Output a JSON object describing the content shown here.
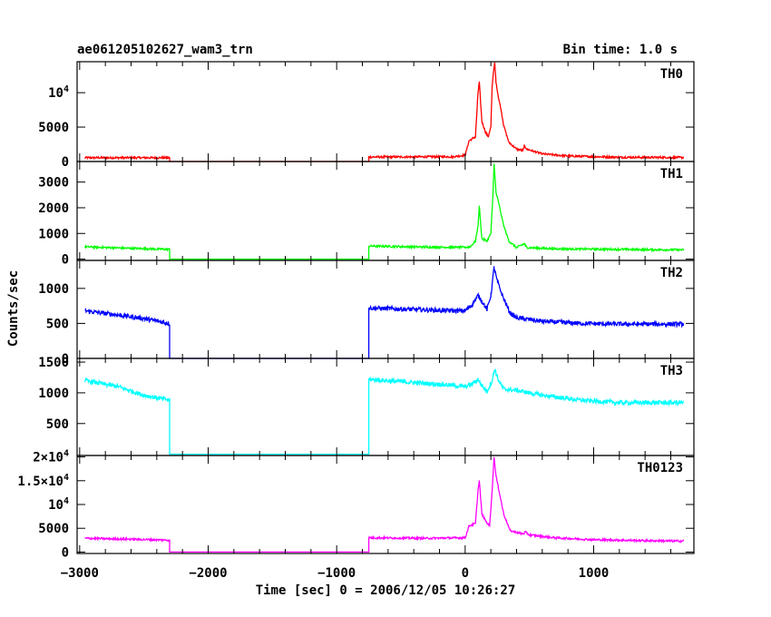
{
  "header": {
    "title": "ae061205102627_wam3_trn",
    "bin_time": "Bin time: 1.0 s"
  },
  "axes": {
    "ylabel": "Counts/sec",
    "xlabel": "Time [sec] 0 = 2006/12/05 10:26:27"
  },
  "chart_data": [
    {
      "type": "line",
      "name": "TH0",
      "color": "#ff0000",
      "ylim": [
        0,
        14500
      ],
      "xlim": [
        -3020,
        1780
      ],
      "ytick_labels": [
        {
          "v": 0,
          "t": "0"
        },
        {
          "v": 5000,
          "t": "5000"
        },
        {
          "v": 10000,
          "t": "10^4"
        }
      ],
      "points": [
        [
          -2960,
          550
        ],
        [
          -2300,
          550
        ],
        [
          -2300,
          0
        ],
        [
          -750,
          0
        ],
        [
          -750,
          650
        ],
        [
          -100,
          700
        ],
        [
          0,
          900
        ],
        [
          30,
          3000
        ],
        [
          80,
          3600
        ],
        [
          100,
          10000
        ],
        [
          110,
          11500
        ],
        [
          130,
          5800
        ],
        [
          160,
          4200
        ],
        [
          180,
          3600
        ],
        [
          200,
          5000
        ],
        [
          210,
          11000
        ],
        [
          220,
          13000
        ],
        [
          230,
          14300
        ],
        [
          240,
          11500
        ],
        [
          260,
          9200
        ],
        [
          280,
          7500
        ],
        [
          300,
          5200
        ],
        [
          340,
          2800
        ],
        [
          400,
          1800
        ],
        [
          450,
          1600
        ],
        [
          460,
          2300
        ],
        [
          480,
          1800
        ],
        [
          600,
          1100
        ],
        [
          800,
          800
        ],
        [
          1200,
          620
        ],
        [
          1700,
          580
        ]
      ]
    },
    {
      "type": "line",
      "name": "TH1",
      "color": "#00ff00",
      "ylim": [
        -50,
        3800
      ],
      "xlim": [
        -3020,
        1780
      ],
      "ytick_labels": [
        {
          "v": 0,
          "t": "0"
        },
        {
          "v": 1000,
          "t": "1000"
        },
        {
          "v": 2000,
          "t": "2000"
        },
        {
          "v": 3000,
          "t": "3000"
        }
      ],
      "points": [
        [
          -2960,
          480
        ],
        [
          -2600,
          420
        ],
        [
          -2300,
          380
        ],
        [
          -2300,
          0
        ],
        [
          -750,
          0
        ],
        [
          -750,
          510
        ],
        [
          -300,
          470
        ],
        [
          0,
          460
        ],
        [
          40,
          480
        ],
        [
          80,
          700
        ],
        [
          100,
          1300
        ],
        [
          110,
          2050
        ],
        [
          130,
          800
        ],
        [
          170,
          700
        ],
        [
          200,
          1000
        ],
        [
          215,
          2400
        ],
        [
          225,
          3700
        ],
        [
          240,
          2600
        ],
        [
          260,
          2200
        ],
        [
          300,
          1300
        ],
        [
          340,
          700
        ],
        [
          400,
          450
        ],
        [
          460,
          600
        ],
        [
          480,
          450
        ],
        [
          700,
          400
        ],
        [
          1000,
          390
        ],
        [
          1400,
          370
        ],
        [
          1700,
          360
        ]
      ]
    },
    {
      "type": "line",
      "name": "TH2",
      "color": "#0000ff",
      "ylim": [
        0,
        1400
      ],
      "xlim": [
        -3020,
        1780
      ],
      "ytick_labels": [
        {
          "v": 0,
          "t": "0"
        },
        {
          "v": 500,
          "t": "500"
        },
        {
          "v": 1000,
          "t": "1000"
        }
      ],
      "points": [
        [
          -2960,
          680
        ],
        [
          -2700,
          620
        ],
        [
          -2500,
          570
        ],
        [
          -2300,
          500
        ],
        [
          -2300,
          0
        ],
        [
          -750,
          0
        ],
        [
          -750,
          720
        ],
        [
          -400,
          700
        ],
        [
          -100,
          680
        ],
        [
          0,
          680
        ],
        [
          50,
          760
        ],
        [
          100,
          900
        ],
        [
          130,
          820
        ],
        [
          170,
          700
        ],
        [
          200,
          900
        ],
        [
          225,
          1300
        ],
        [
          250,
          1100
        ],
        [
          300,
          850
        ],
        [
          350,
          650
        ],
        [
          400,
          580
        ],
        [
          600,
          530
        ],
        [
          900,
          500
        ],
        [
          1200,
          490
        ],
        [
          1700,
          490
        ]
      ]
    },
    {
      "type": "line",
      "name": "TH3",
      "color": "#00ffff",
      "ylim": [
        -20,
        1560
      ],
      "xlim": [
        -3020,
        1780
      ],
      "ytick_labels": [
        {
          "v": 500,
          "t": "500"
        },
        {
          "v": 1000,
          "t": "1000"
        },
        {
          "v": 1500,
          "t": "1500"
        }
      ],
      "points": [
        [
          -2960,
          1200
        ],
        [
          -2700,
          1100
        ],
        [
          -2500,
          960
        ],
        [
          -2300,
          880
        ],
        [
          -2300,
          0
        ],
        [
          -750,
          0
        ],
        [
          -750,
          1220
        ],
        [
          -500,
          1180
        ],
        [
          -200,
          1140
        ],
        [
          0,
          1100
        ],
        [
          50,
          1140
        ],
        [
          100,
          1220
        ],
        [
          130,
          1120
        ],
        [
          170,
          1020
        ],
        [
          210,
          1200
        ],
        [
          230,
          1380
        ],
        [
          260,
          1200
        ],
        [
          300,
          1060
        ],
        [
          400,
          1040
        ],
        [
          600,
          960
        ],
        [
          900,
          880
        ],
        [
          1200,
          840
        ],
        [
          1700,
          840
        ]
      ]
    },
    {
      "type": "line",
      "name": "TH0123",
      "color": "#ff00ff",
      "ylim": [
        -300,
        20300
      ],
      "xlim": [
        -3020,
        1780
      ],
      "ytick_labels": [
        {
          "v": 0,
          "t": "0"
        },
        {
          "v": 5000,
          "t": "5000"
        },
        {
          "v": 10000,
          "t": "10^4"
        },
        {
          "v": 15000,
          "t": "1.5×10^4"
        },
        {
          "v": 20000,
          "t": "2×10^4"
        }
      ],
      "points": [
        [
          -2960,
          2900
        ],
        [
          -2600,
          2700
        ],
        [
          -2300,
          2500
        ],
        [
          -2300,
          0
        ],
        [
          -750,
          0
        ],
        [
          -750,
          3000
        ],
        [
          -300,
          2900
        ],
        [
          0,
          3000
        ],
        [
          30,
          5500
        ],
        [
          80,
          6000
        ],
        [
          100,
          13000
        ],
        [
          110,
          15000
        ],
        [
          130,
          8000
        ],
        [
          160,
          6500
        ],
        [
          190,
          5500
        ],
        [
          210,
          13000
        ],
        [
          225,
          20000
        ],
        [
          240,
          16000
        ],
        [
          270,
          12000
        ],
        [
          300,
          8000
        ],
        [
          350,
          4500
        ],
        [
          450,
          3800
        ],
        [
          470,
          4200
        ],
        [
          500,
          3600
        ],
        [
          700,
          3000
        ],
        [
          1000,
          2600
        ],
        [
          1400,
          2400
        ],
        [
          1700,
          2300
        ]
      ]
    }
  ],
  "xaxis": {
    "ticks": [
      -3000,
      -2000,
      -1000,
      0,
      1000
    ],
    "labels": [
      "−3000",
      "−2000",
      "−1000",
      "0",
      "1000"
    ],
    "minor_step": 200
  }
}
